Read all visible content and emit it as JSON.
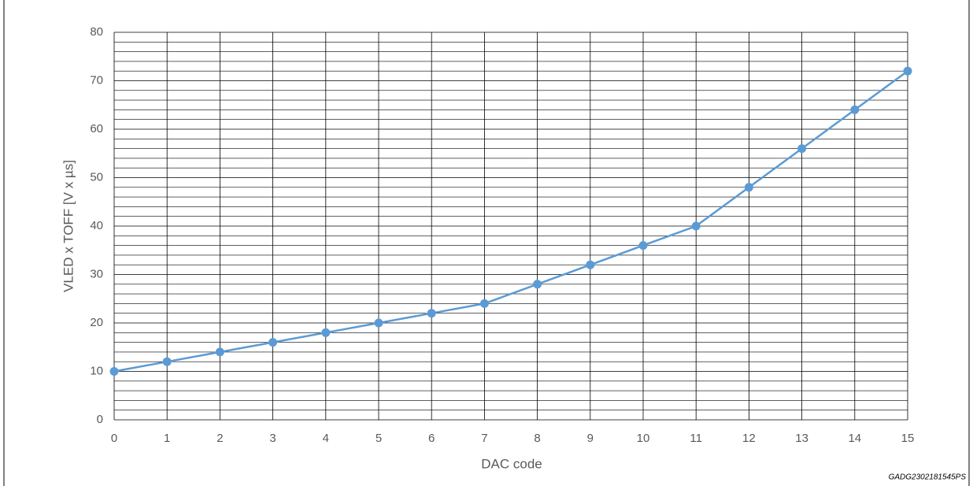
{
  "chart_data": {
    "type": "line",
    "x_label": "DAC code",
    "y_label": "VLED x TOFF [V x µs]",
    "footnote": "GADG2302181545PS",
    "x": [
      0,
      1,
      2,
      3,
      4,
      5,
      6,
      7,
      8,
      9,
      10,
      11,
      12,
      13,
      14,
      15
    ],
    "series": [
      {
        "color": "#5b9bd5",
        "values": [
          10,
          12,
          14,
          16,
          18,
          20,
          22,
          24,
          28,
          32,
          36,
          40,
          48,
          56,
          64,
          72
        ]
      }
    ],
    "xlim": [
      0,
      15
    ],
    "xticks": [
      0,
      1,
      2,
      3,
      4,
      5,
      6,
      7,
      8,
      9,
      10,
      11,
      12,
      13,
      14,
      15
    ],
    "ylim": [
      0,
      80
    ],
    "yticks": [
      0,
      10,
      20,
      30,
      40,
      50,
      60,
      70,
      80
    ],
    "yminorticks": [
      2,
      4,
      6,
      8,
      12,
      14,
      16,
      18,
      22,
      24,
      26,
      28,
      32,
      34,
      36,
      38,
      42,
      44,
      46,
      48,
      52,
      54,
      56,
      58,
      62,
      64,
      66,
      68,
      72,
      74,
      76,
      78
    ],
    "grid": true
  }
}
